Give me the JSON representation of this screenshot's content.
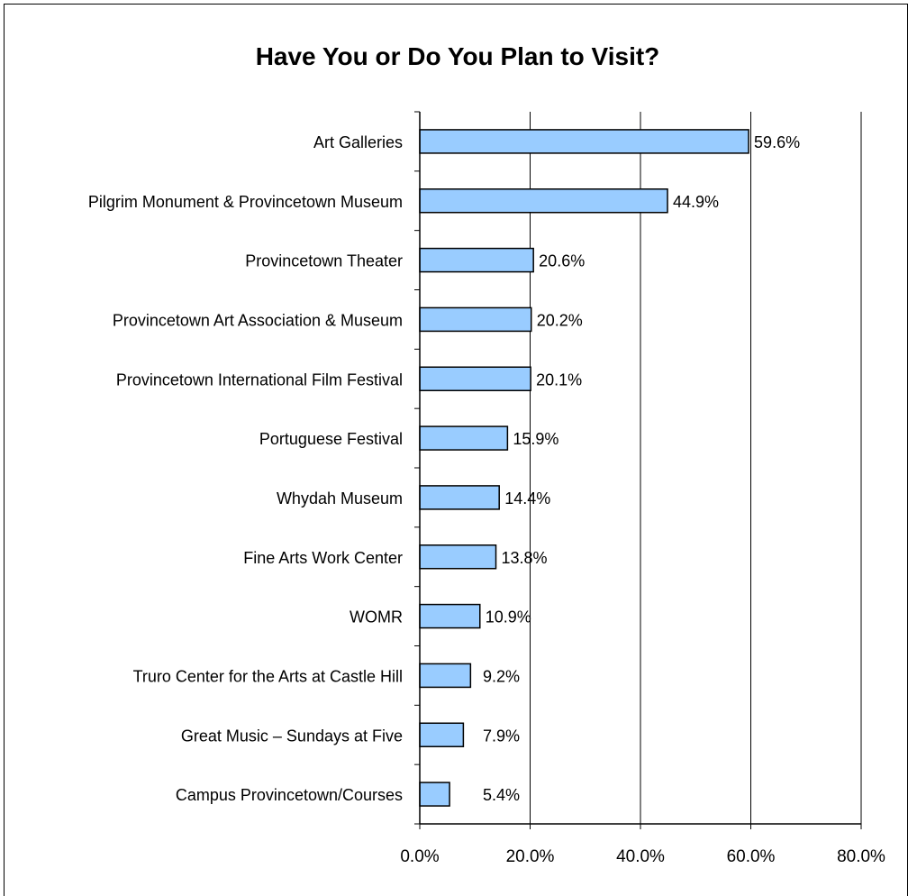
{
  "chart_data": {
    "type": "bar",
    "orientation": "horizontal",
    "title": "Have You or Do You Plan to Visit?",
    "xlabel": "",
    "ylabel": "",
    "categories": [
      "Art Galleries",
      "Pilgrim Monument & Provincetown Museum",
      "Provincetown Theater",
      "Provincetown Art Association & Museum",
      "Provincetown International Film Festival",
      "Portuguese Festival",
      "Whydah Museum",
      "Fine Arts Work Center",
      "WOMR",
      "Truro Center for the Arts at Castle Hill",
      "Great Music – Sundays at Five",
      "Campus Provincetown/Courses"
    ],
    "values": [
      59.6,
      44.9,
      20.6,
      20.2,
      20.1,
      15.9,
      14.4,
      13.8,
      10.9,
      9.2,
      7.9,
      5.4
    ],
    "data_labels": [
      "59.6%",
      "44.9%",
      "20.6%",
      "20.2%",
      "20.1%",
      "15.9%",
      "14.4%",
      "13.8%",
      "10.9%",
      "9.2%",
      "7.9%",
      "5.4%"
    ],
    "xlim": [
      0,
      80
    ],
    "x_ticks": [
      0,
      20,
      40,
      60,
      80
    ],
    "x_tick_labels": [
      "0.0%",
      "20.0%",
      "40.0%",
      "60.0%",
      "80.0%"
    ],
    "grid": "vertical",
    "legend": "none",
    "colors": {
      "bar_fill": "#99ccff",
      "bar_stroke": "#000000",
      "grid": "#000000"
    }
  }
}
